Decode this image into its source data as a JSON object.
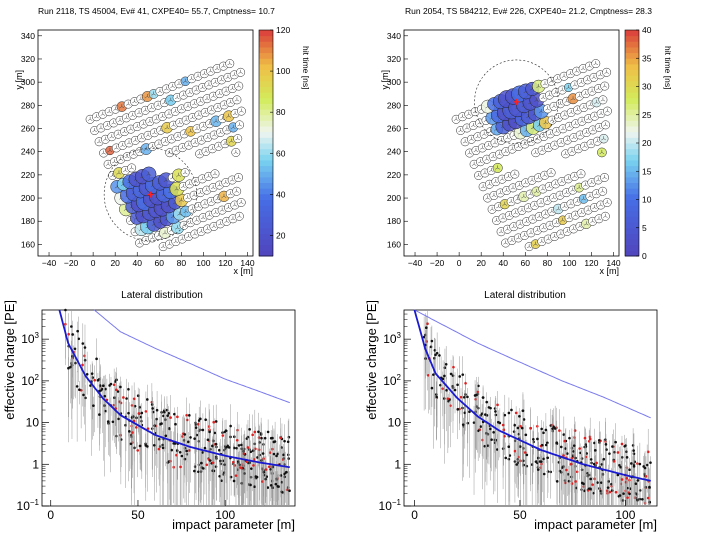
{
  "chart_data": [
    {
      "type": "scatter",
      "title": "Run 2118, TS 45004, Ev# 41, CXPE40= 55.7, Cmptness= 10.7",
      "xlabel": "x [m]",
      "ylabel": "y [m]",
      "xlim": [
        -50,
        145
      ],
      "ylim": [
        150,
        345
      ],
      "xticks": [
        -40,
        -20,
        0,
        20,
        40,
        60,
        80,
        100,
        120,
        140
      ],
      "yticks": [
        160,
        180,
        200,
        220,
        240,
        260,
        280,
        300,
        320,
        340
      ],
      "colorbar": {
        "label": "hit time [ns]",
        "range": [
          10,
          120
        ],
        "ticks": [
          20,
          40,
          60,
          80,
          100,
          120
        ]
      },
      "core": {
        "x": 52,
        "y": 203
      },
      "circle_radius_m": 42,
      "hit_region": {
        "cx": 52,
        "cy": 200,
        "spread": 24
      },
      "seed": 3
    },
    {
      "type": "scatter",
      "title": "Run 2054, TS 584212, Ev# 226, CXPE40= 21.2, Cmptness= 28.3",
      "xlabel": "x [m]",
      "ylabel": "y [m]",
      "xlim": [
        -50,
        145
      ],
      "ylim": [
        150,
        345
      ],
      "xticks": [
        -40,
        -20,
        0,
        20,
        40,
        60,
        80,
        100,
        120,
        140
      ],
      "yticks": [
        160,
        180,
        200,
        220,
        240,
        260,
        280,
        300,
        320,
        340
      ],
      "colorbar": {
        "label": "hit time [ns]",
        "range": [
          0,
          40
        ],
        "ticks": [
          0,
          5,
          10,
          15,
          20,
          25,
          30,
          35,
          40
        ]
      },
      "core": {
        "x": 52,
        "y": 283
      },
      "circle_radius_m": 38,
      "hit_region": {
        "cx": 50,
        "cy": 280,
        "spread": 22
      },
      "seed": 7
    },
    {
      "type": "scatter",
      "title": "Lateral distribution",
      "xlabel": "impact parameter [m]",
      "ylabel": "effective charge [PE]",
      "xlim": [
        -5,
        140
      ],
      "ylim_log": [
        0.1,
        5000
      ],
      "xticks": [
        0,
        50,
        100
      ],
      "yticks": [
        {
          "v": 0.1,
          "label": "10",
          "exp": "−1"
        },
        {
          "v": 1,
          "label": "1",
          "exp": ""
        },
        {
          "v": 10,
          "label": "10",
          "exp": ""
        },
        {
          "v": 100,
          "label": "10",
          "exp": "2"
        },
        {
          "v": 1000,
          "label": "10",
          "exp": "3"
        }
      ],
      "fit_curve": [
        [
          5,
          5000
        ],
        [
          10,
          800
        ],
        [
          20,
          130
        ],
        [
          30,
          38
        ],
        [
          40,
          15
        ],
        [
          60,
          5
        ],
        [
          80,
          2.6
        ],
        [
          100,
          1.6
        ],
        [
          120,
          1.1
        ],
        [
          137,
          0.85
        ]
      ],
      "upper_curve": [
        [
          25,
          5000
        ],
        [
          40,
          1500
        ],
        [
          60,
          600
        ],
        [
          80,
          260
        ],
        [
          100,
          110
        ],
        [
          120,
          55
        ],
        [
          137,
          30
        ]
      ],
      "points_n": 380,
      "seed": 11
    },
    {
      "type": "scatter",
      "title": "Lateral distribution",
      "xlabel": "impact parameter [m]",
      "ylabel": "effective charge [PE]",
      "xlim": [
        -5,
        115
      ],
      "ylim_log": [
        0.1,
        5000
      ],
      "xticks": [
        0,
        50,
        100
      ],
      "yticks": [
        {
          "v": 0.1,
          "label": "10",
          "exp": "−1"
        },
        {
          "v": 1,
          "label": "1",
          "exp": ""
        },
        {
          "v": 10,
          "label": "10",
          "exp": ""
        },
        {
          "v": 100,
          "label": "10",
          "exp": "2"
        },
        {
          "v": 1000,
          "label": "10",
          "exp": "3"
        }
      ],
      "fit_curve": [
        [
          0,
          5000
        ],
        [
          5,
          600
        ],
        [
          10,
          150
        ],
        [
          20,
          40
        ],
        [
          30,
          14
        ],
        [
          40,
          6.5
        ],
        [
          60,
          2.2
        ],
        [
          80,
          1
        ],
        [
          100,
          0.55
        ],
        [
          112,
          0.4
        ]
      ],
      "upper_curve": [
        [
          0,
          5000
        ],
        [
          15,
          2000
        ],
        [
          30,
          800
        ],
        [
          50,
          280
        ],
        [
          70,
          100
        ],
        [
          90,
          40
        ],
        [
          112,
          13
        ]
      ],
      "points_n": 360,
      "seed": 19
    }
  ]
}
